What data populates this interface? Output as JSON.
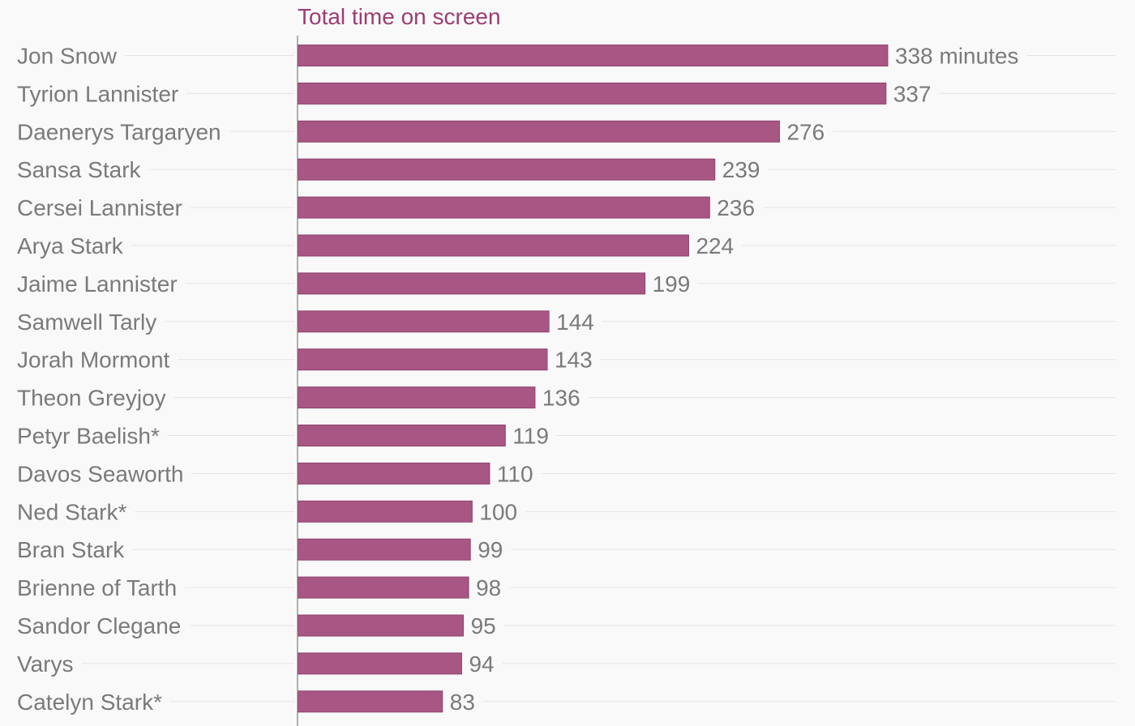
{
  "chart_data": {
    "type": "bar",
    "orientation": "horizontal",
    "title": "Total time on screen",
    "value_suffix_first": " minutes",
    "categories": [
      "Jon Snow",
      "Tyrion Lannister",
      "Daenerys Targaryen",
      "Sansa Stark",
      "Cersei Lannister",
      "Arya Stark",
      "Jaime Lannister",
      "Samwell Tarly",
      "Jorah Mormont",
      "Theon Greyjoy",
      "Petyr Baelish*",
      "Davos Seaworth",
      "Ned Stark*",
      "Bran Stark",
      "Brienne of Tarth",
      "Sandor Clegane",
      "Varys",
      "Catelyn Stark*"
    ],
    "values": [
      338,
      337,
      276,
      239,
      236,
      224,
      199,
      144,
      143,
      136,
      119,
      110,
      100,
      99,
      98,
      95,
      94,
      83
    ],
    "grid": true,
    "colors": {
      "bar": "#a85683",
      "bar_edge": "#8e4370",
      "title": "#9c3d74",
      "text": "#7a7a7a",
      "gridline": "#e4e4e4",
      "axis": "#666666"
    }
  }
}
